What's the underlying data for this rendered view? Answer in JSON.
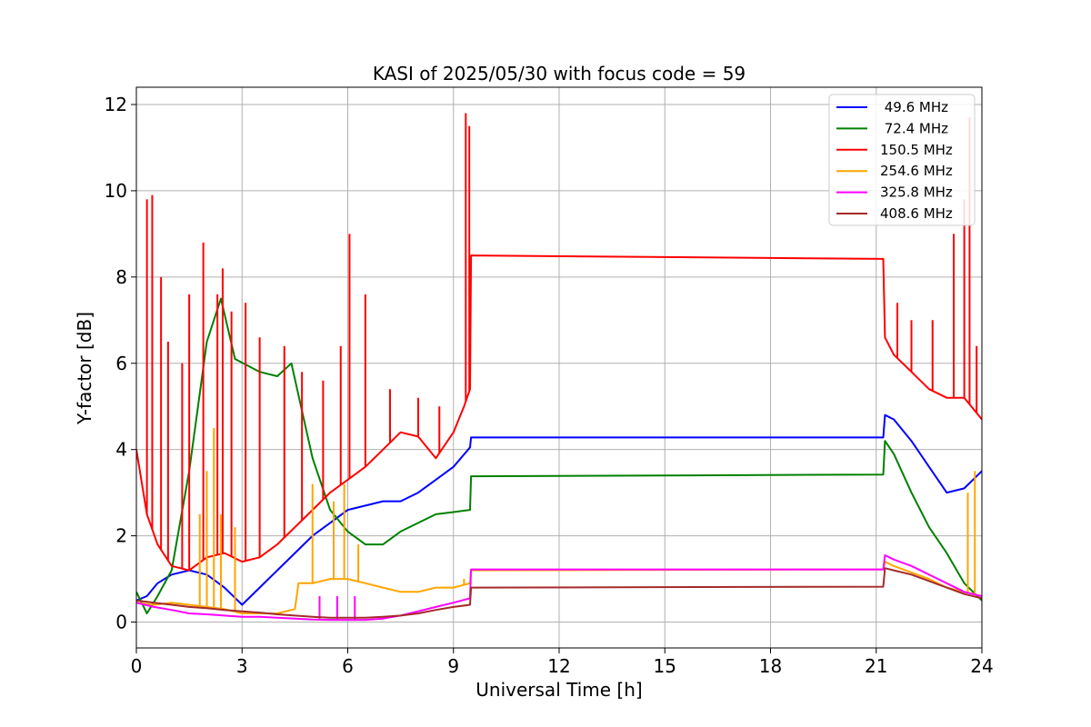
{
  "chart_data": {
    "type": "line",
    "title": "KASI of 2025/05/30 with focus code = 59",
    "xlabel": "Universal Time [h]",
    "ylabel": "Y-factor [dB]",
    "xlim": [
      0,
      24
    ],
    "ylim": [
      -0.6,
      12.4
    ],
    "xticks": [
      0,
      3,
      6,
      9,
      12,
      15,
      18,
      21,
      24
    ],
    "yticks": [
      0,
      2,
      4,
      6,
      8,
      10,
      12
    ],
    "grid": true,
    "legend_position": "top-right",
    "series": [
      {
        "name": " 49.6 MHz",
        "color": "#0000ff",
        "x": [
          0,
          0.3,
          0.6,
          1.0,
          1.5,
          2.0,
          2.5,
          3.0,
          3.5,
          4.0,
          4.5,
          5.0,
          5.5,
          6.0,
          6.5,
          7.0,
          7.5,
          8.0,
          8.5,
          9.0,
          9.47,
          9.5,
          21.2,
          21.25,
          21.5,
          22.0,
          22.5,
          23.0,
          23.5,
          24.0
        ],
        "y": [
          0.5,
          0.6,
          0.9,
          1.1,
          1.2,
          1.1,
          0.8,
          0.4,
          0.8,
          1.2,
          1.6,
          2.0,
          2.3,
          2.6,
          2.7,
          2.8,
          2.8,
          3.0,
          3.3,
          3.6,
          4.05,
          4.28,
          4.28,
          4.8,
          4.7,
          4.2,
          3.6,
          3.0,
          3.1,
          3.5
        ]
      },
      {
        "name": " 72.4 MHz",
        "color": "#008000",
        "x": [
          0,
          0.3,
          0.6,
          1.0,
          1.5,
          2.0,
          2.4,
          2.8,
          3.5,
          4.0,
          4.4,
          5.0,
          5.5,
          6.0,
          6.5,
          7.0,
          7.5,
          8.0,
          8.5,
          9.0,
          9.47,
          9.5,
          21.2,
          21.25,
          21.5,
          22.0,
          22.5,
          23.0,
          23.5,
          24.0
        ],
        "y": [
          0.7,
          0.2,
          0.6,
          1.2,
          3.5,
          6.5,
          7.5,
          6.1,
          5.8,
          5.7,
          6.0,
          3.8,
          2.6,
          2.1,
          1.8,
          1.8,
          2.1,
          2.3,
          2.5,
          2.55,
          2.6,
          3.38,
          3.42,
          4.2,
          3.9,
          3.0,
          2.2,
          1.6,
          0.9,
          0.5
        ]
      },
      {
        "name": "150.5 MHz",
        "color": "#ff0000",
        "x": [
          0,
          0.3,
          0.6,
          1.0,
          1.5,
          2.0,
          2.5,
          3.0,
          3.5,
          4.0,
          4.5,
          5.0,
          5.5,
          6.0,
          6.5,
          7.0,
          7.5,
          8.0,
          8.5,
          9.0,
          9.3,
          9.47,
          9.5,
          21.2,
          21.25,
          21.5,
          22.0,
          22.5,
          23.0,
          23.5,
          24.0
        ],
        "y": [
          4.0,
          2.5,
          1.8,
          1.3,
          1.2,
          1.5,
          1.6,
          1.4,
          1.5,
          1.8,
          2.2,
          2.6,
          3.0,
          3.3,
          3.6,
          4.0,
          4.4,
          4.3,
          3.8,
          4.4,
          5.0,
          5.4,
          8.5,
          8.42,
          6.6,
          6.2,
          5.8,
          5.4,
          5.2,
          5.2,
          4.7
        ],
        "spikes": [
          [
            0.3,
            9.8
          ],
          [
            0.45,
            9.9
          ],
          [
            0.7,
            8.0
          ],
          [
            0.9,
            6.5
          ],
          [
            1.3,
            6.0
          ],
          [
            1.5,
            7.6
          ],
          [
            1.9,
            8.8
          ],
          [
            2.3,
            7.6
          ],
          [
            2.45,
            8.2
          ],
          [
            2.7,
            7.2
          ],
          [
            3.1,
            7.4
          ],
          [
            3.5,
            6.6
          ],
          [
            4.2,
            6.4
          ],
          [
            4.7,
            5.8
          ],
          [
            5.3,
            5.6
          ],
          [
            5.8,
            6.4
          ],
          [
            6.05,
            9.0
          ],
          [
            6.5,
            7.6
          ],
          [
            7.2,
            5.4
          ],
          [
            8.0,
            5.2
          ],
          [
            8.6,
            5.0
          ],
          [
            9.35,
            11.8
          ],
          [
            9.45,
            11.5
          ],
          [
            21.6,
            7.4
          ],
          [
            22.0,
            7.0
          ],
          [
            22.6,
            7.0
          ],
          [
            23.2,
            9.0
          ],
          [
            23.5,
            9.8
          ],
          [
            23.65,
            11.7
          ],
          [
            23.85,
            6.4
          ]
        ]
      },
      {
        "name": "254.6 MHz",
        "color": "#ffa500",
        "x": [
          0,
          0.5,
          1.0,
          1.5,
          2.0,
          2.5,
          3.0,
          3.5,
          4.0,
          4.5,
          4.6,
          5.0,
          5.5,
          6.0,
          6.5,
          7.0,
          7.5,
          8.0,
          8.5,
          9.0,
          9.47,
          9.5,
          21.2,
          21.25,
          21.5,
          22.0,
          22.5,
          23.0,
          23.5,
          24.0
        ],
        "y": [
          0.45,
          0.4,
          0.45,
          0.4,
          0.35,
          0.3,
          0.2,
          0.2,
          0.2,
          0.3,
          0.9,
          0.9,
          1.0,
          1.0,
          0.9,
          0.8,
          0.7,
          0.7,
          0.8,
          0.8,
          0.9,
          1.2,
          1.22,
          1.4,
          1.3,
          1.15,
          1.0,
          0.8,
          0.7,
          0.6
        ],
        "spikes": [
          [
            1.8,
            2.5
          ],
          [
            2.0,
            3.5
          ],
          [
            2.2,
            4.5
          ],
          [
            2.4,
            2.5
          ],
          [
            2.8,
            2.2
          ],
          [
            5.0,
            3.2
          ],
          [
            5.6,
            2.8
          ],
          [
            5.9,
            3.2
          ],
          [
            6.3,
            1.8
          ],
          [
            9.3,
            1.0
          ],
          [
            23.6,
            3.0
          ],
          [
            23.8,
            3.5
          ]
        ]
      },
      {
        "name": "325.8 MHz",
        "color": "#ff00ff",
        "x": [
          0,
          0.5,
          1.0,
          1.5,
          2.0,
          2.5,
          3.0,
          3.5,
          4.0,
          4.5,
          5.0,
          5.5,
          6.0,
          6.5,
          7.0,
          7.5,
          8.0,
          8.5,
          9.0,
          9.47,
          9.5,
          21.2,
          21.25,
          21.5,
          22.0,
          22.5,
          23.0,
          23.5,
          24.0
        ],
        "y": [
          0.45,
          0.35,
          0.28,
          0.2,
          0.18,
          0.15,
          0.12,
          0.12,
          0.1,
          0.08,
          0.06,
          0.05,
          0.05,
          0.05,
          0.08,
          0.15,
          0.25,
          0.35,
          0.45,
          0.55,
          1.22,
          1.22,
          1.55,
          1.45,
          1.3,
          1.1,
          0.9,
          0.7,
          0.6
        ],
        "spikes": [
          [
            5.2,
            0.6
          ],
          [
            5.7,
            0.6
          ],
          [
            6.2,
            0.6
          ]
        ]
      },
      {
        "name": "408.6 MHz",
        "color": "#a52a2a",
        "x": [
          0,
          0.5,
          1.0,
          1.5,
          2.0,
          2.5,
          3.0,
          3.5,
          4.0,
          4.5,
          5.0,
          5.5,
          6.0,
          6.5,
          7.0,
          7.5,
          8.0,
          8.5,
          9.0,
          9.47,
          9.5,
          21.2,
          21.25,
          21.5,
          22.0,
          22.5,
          23.0,
          23.5,
          24.0
        ],
        "y": [
          0.5,
          0.45,
          0.4,
          0.35,
          0.32,
          0.28,
          0.25,
          0.22,
          0.18,
          0.15,
          0.12,
          0.1,
          0.1,
          0.1,
          0.12,
          0.15,
          0.2,
          0.28,
          0.35,
          0.4,
          0.8,
          0.82,
          1.25,
          1.2,
          1.1,
          0.95,
          0.8,
          0.65,
          0.55
        ]
      }
    ]
  }
}
